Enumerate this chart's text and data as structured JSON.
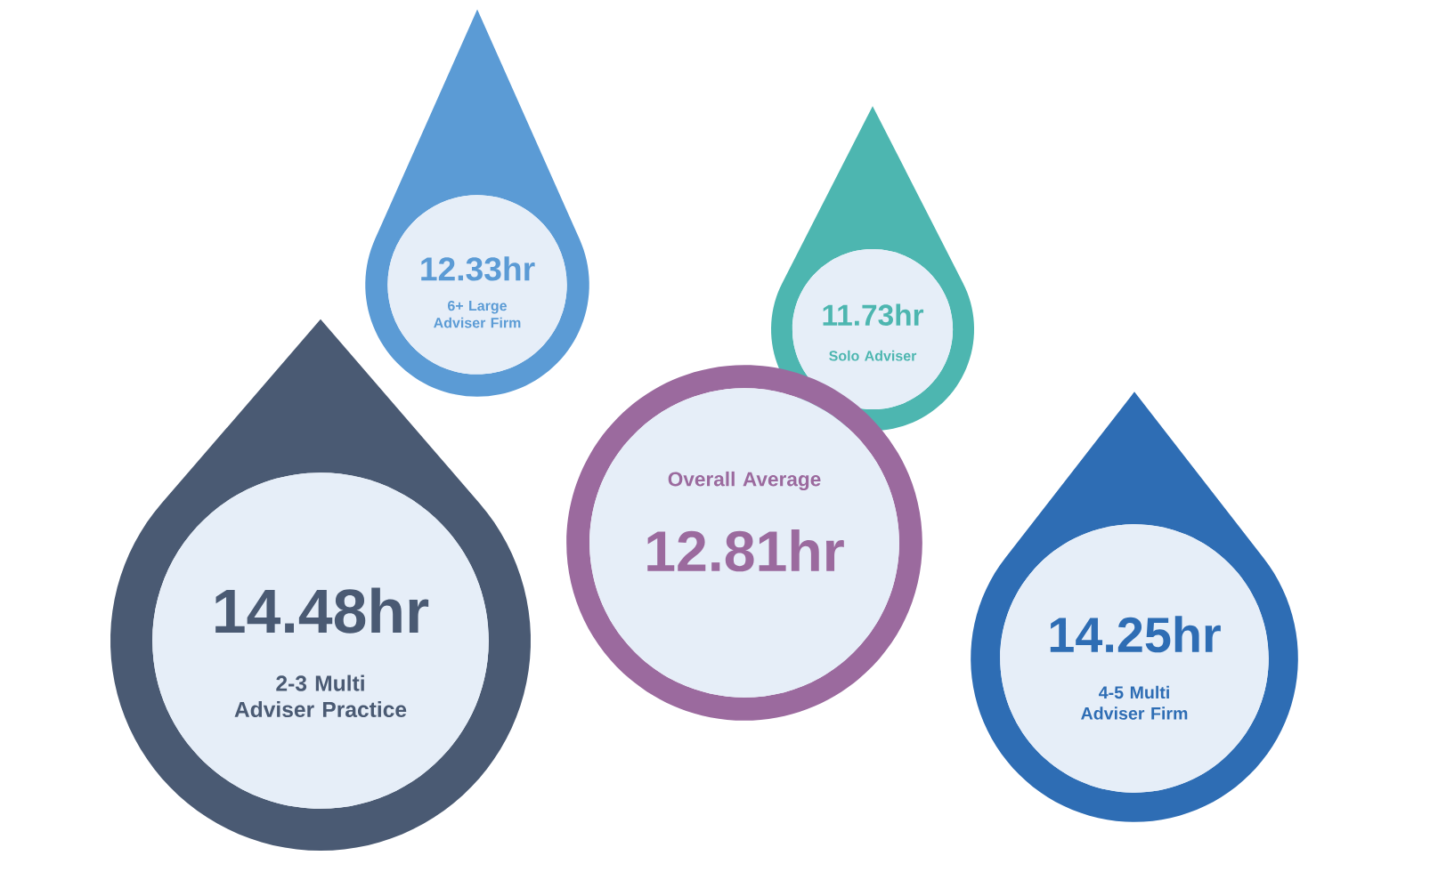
{
  "chart_data": {
    "type": "other",
    "categories": [
      "6+ Large Adviser Firm",
      "Solo Adviser",
      "Overall Average",
      "2-3 Multi Adviser Practice",
      "4-5 Multi Adviser Firm"
    ],
    "values": [
      12.33,
      11.73,
      12.81,
      14.48,
      14.25
    ],
    "value_labels": [
      "12.33hr",
      "11.73hr",
      "12.81hr",
      "14.48hr",
      "14.25hr"
    ],
    "colors": [
      "#5b9bd5",
      "#4db6b0",
      "#9b6a9e",
      "#4a5a73",
      "#2e6db4"
    ]
  }
}
